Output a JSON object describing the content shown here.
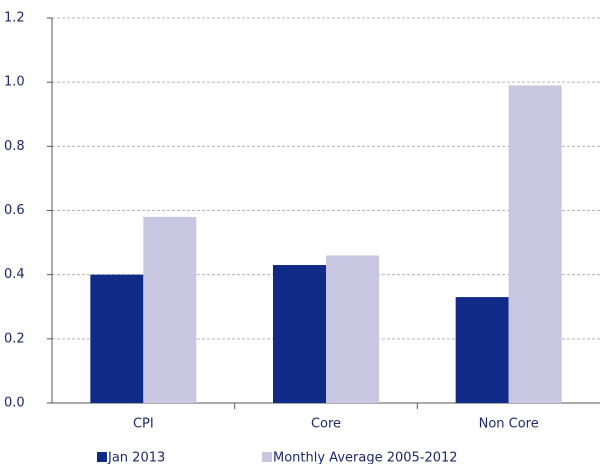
{
  "chart_data": {
    "type": "bar",
    "categories": [
      "CPI",
      "Core",
      "Non Core"
    ],
    "series": [
      {
        "name": "Jan 2013",
        "color": "#0f2a87",
        "values": [
          0.4,
          0.43,
          0.33
        ]
      },
      {
        "name": "Monthly Average 2005-2012",
        "color": "#c8c6e0",
        "values": [
          0.58,
          0.46,
          0.99
        ]
      }
    ],
    "ylim": [
      0,
      1.2
    ],
    "yticks": [
      {
        "value": 0,
        "label": "0.0"
      },
      0.2,
      0.4,
      0.6,
      0.8,
      {
        "value": 1,
        "label": "1.0"
      },
      1.2
    ],
    "grid": true,
    "legend": "bottom"
  }
}
